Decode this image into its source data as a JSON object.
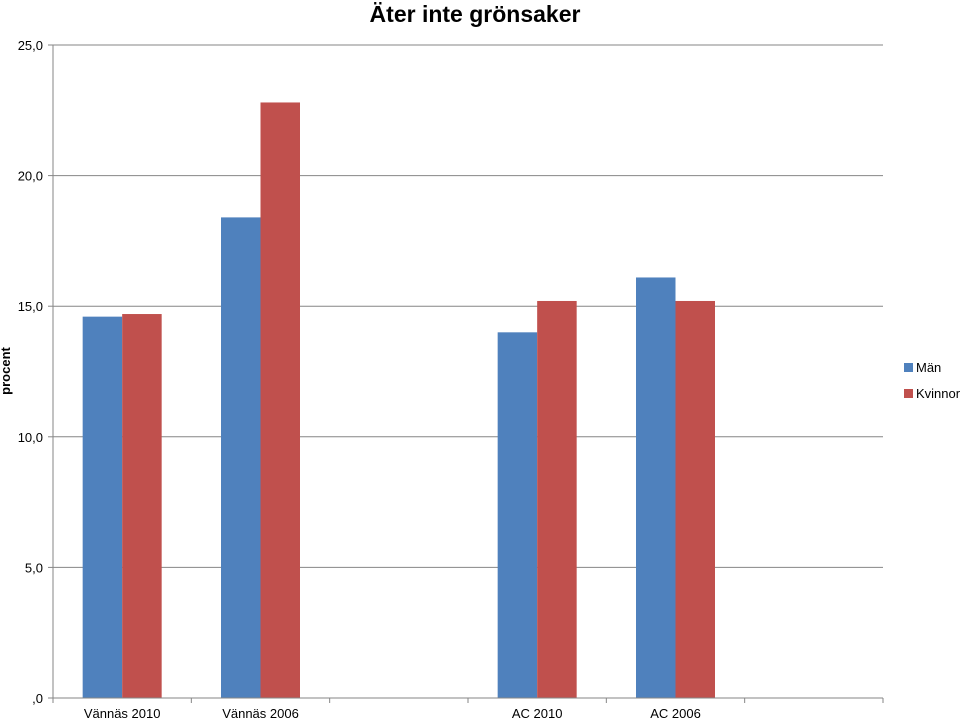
{
  "chart_data": {
    "type": "bar",
    "title": "Äter inte grönsaker",
    "ylabel": "procent",
    "xlabel": "",
    "categories": [
      "Vännäs 2010",
      "Vännäs 2006",
      "",
      "AC 2010",
      "AC 2006",
      ""
    ],
    "series": [
      {
        "name": "Män",
        "color": "#4F81BD",
        "values": [
          14.6,
          18.4,
          null,
          14.0,
          16.1,
          null
        ]
      },
      {
        "name": "Kvinnor",
        "color": "#C0504D",
        "values": [
          14.7,
          22.8,
          null,
          15.2,
          15.2,
          null
        ]
      }
    ],
    "ylim": [
      0,
      25
    ],
    "yticks": [
      0,
      5,
      10,
      15,
      20,
      25
    ],
    "ytick_labels": [
      ",0",
      "5,0",
      "10,0",
      "15,0",
      "20,0",
      "25,0"
    ],
    "grid": true,
    "legend": "right"
  }
}
